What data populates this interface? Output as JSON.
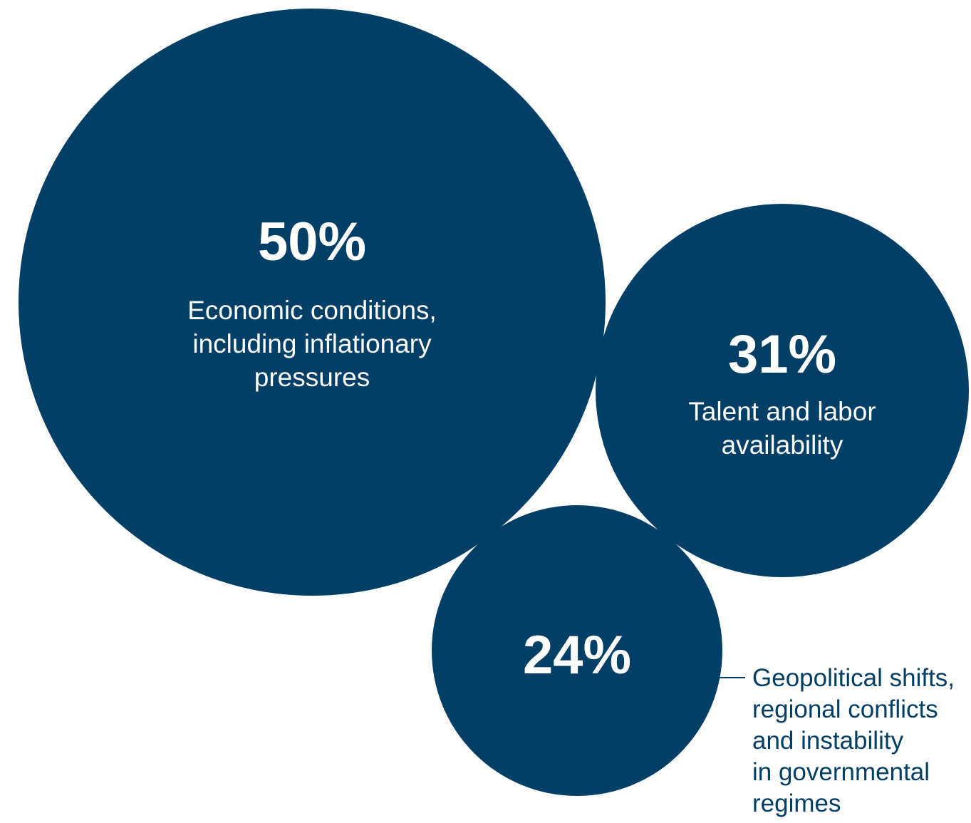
{
  "chart_data": {
    "type": "bubble",
    "points": [
      {
        "value": 50,
        "value_label": "50%",
        "category_lines": [
          "Economic conditions,",
          "including inflationary",
          "pressures"
        ]
      },
      {
        "value": 31,
        "value_label": "31%",
        "category_lines": [
          "Talent and labor",
          "availability"
        ]
      },
      {
        "value": 24,
        "value_label": "24%",
        "category_lines": [
          "Geopolitical shifts,",
          "regional conflicts",
          "and instability",
          "in governmental",
          "regimes"
        ]
      }
    ],
    "colors": {
      "bubble": "#023f66",
      "inside_text": "#ffffff",
      "outside_text": "#023f66"
    }
  }
}
